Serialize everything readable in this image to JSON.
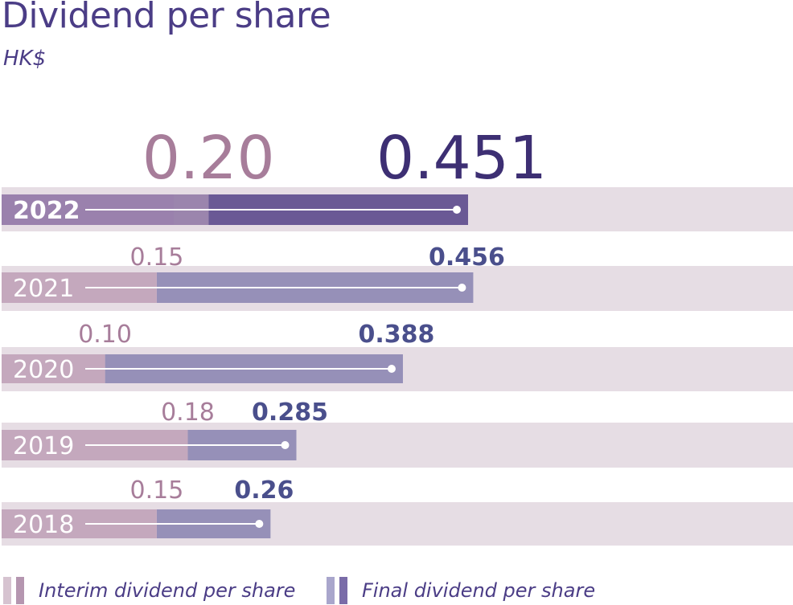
{
  "title": "Dividend per share",
  "unit": "HK$",
  "chart_data": {
    "type": "bar",
    "stacked": true,
    "orientation": "horizontal",
    "title": "Dividend per share",
    "ylabel": "HK$",
    "categories": [
      "2022",
      "2021",
      "2020",
      "2019",
      "2018"
    ],
    "series": [
      {
        "name": "Interim dividend per share",
        "values": [
          0.2,
          0.15,
          0.1,
          0.18,
          0.15
        ],
        "labels": [
          "0.20",
          "0.15",
          "0.10",
          "0.18",
          "0.15"
        ]
      },
      {
        "name": "Final dividend per share",
        "values": [
          0.451,
          0.456,
          0.388,
          0.285,
          0.26
        ],
        "labels": [
          "0.451",
          "0.456",
          "0.388",
          "0.285",
          "0.26"
        ]
      }
    ],
    "highlight_category": "2022",
    "xlim": [
      0,
      0.72
    ],
    "colors": {
      "track": "#e6dde4",
      "interim": "#c4a8bd",
      "final": "#9690b8",
      "interim_highlight": "#9a81ad",
      "final_highlight": "#6a5995",
      "interim_label": "#a77d9a",
      "final_label": "#4a4f8c",
      "final_label_highlight": "#3d2f73",
      "year_label": "#ffffff",
      "legend_interim": [
        "#d6c3d0",
        "#b596b0"
      ],
      "legend_final": [
        "#a9a6cc",
        "#7a6ca8"
      ]
    }
  },
  "legend": {
    "interim_label": "Interim dividend per share",
    "final_label": "Final dividend per share"
  }
}
